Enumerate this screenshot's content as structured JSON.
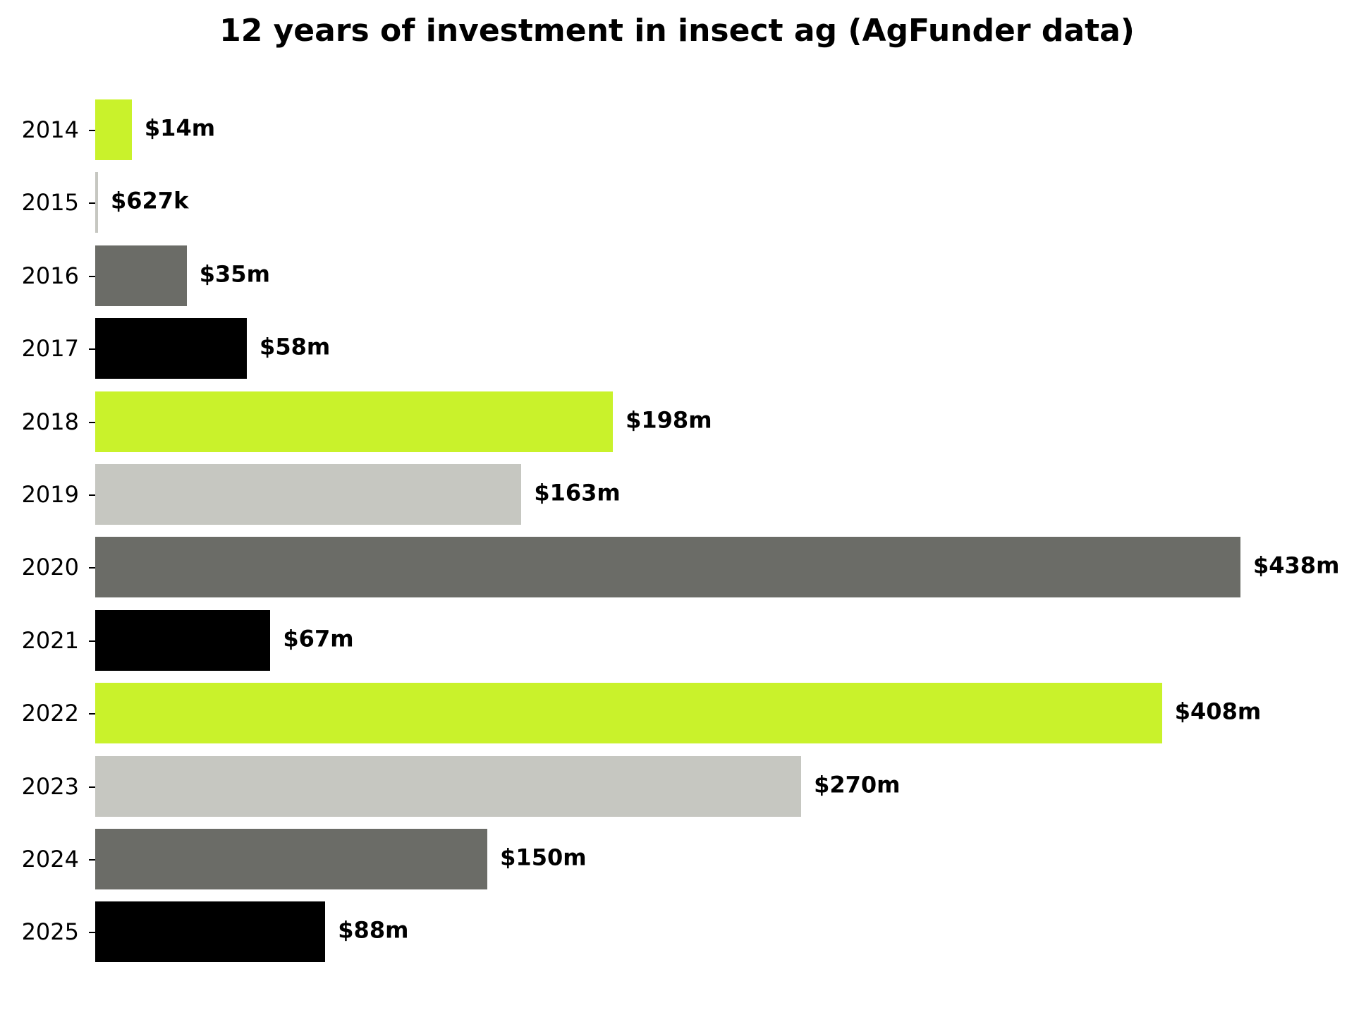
{
  "chart_data": {
    "type": "bar",
    "orientation": "horizontal",
    "title": "12 years of investment in insect ag (AgFunder data)",
    "xlabel": "",
    "ylabel": "",
    "unit": "USD millions",
    "categories": [
      "2014",
      "2015",
      "2016",
      "2017",
      "2018",
      "2019",
      "2020",
      "2021",
      "2022",
      "2023",
      "2024",
      "2025"
    ],
    "values": [
      14,
      0.627,
      35,
      58,
      198,
      163,
      438,
      67,
      408,
      270,
      150,
      88
    ],
    "labels": [
      "$14m",
      "$627k",
      "$35m",
      "$58m",
      "$198m",
      "$163m",
      "$438m",
      "$67m",
      "$408m",
      "$270m",
      "$150m",
      "$88m"
    ],
    "colors": [
      "#c9f22b",
      "#c6c7c1",
      "#6b6c67",
      "#000000",
      "#c9f22b",
      "#c6c7c1",
      "#6b6c67",
      "#000000",
      "#c9f22b",
      "#c6c7c1",
      "#6b6c67",
      "#000000"
    ],
    "xlim": [
      0,
      438
    ],
    "grid": false,
    "legend": null,
    "x_axis_visible": false
  }
}
